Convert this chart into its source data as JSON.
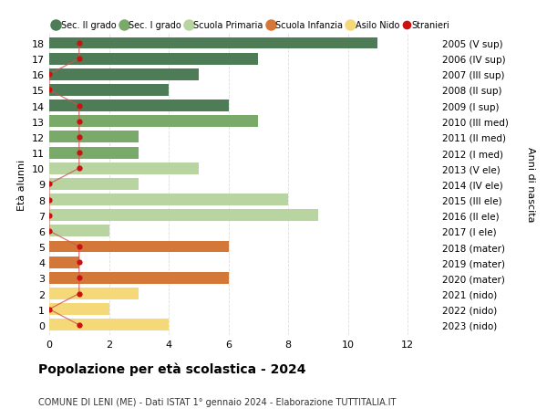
{
  "ages": [
    18,
    17,
    16,
    15,
    14,
    13,
    12,
    11,
    10,
    9,
    8,
    7,
    6,
    5,
    4,
    3,
    2,
    1,
    0
  ],
  "right_labels": [
    "2005 (V sup)",
    "2006 (IV sup)",
    "2007 (III sup)",
    "2008 (II sup)",
    "2009 (I sup)",
    "2010 (III med)",
    "2011 (II med)",
    "2012 (I med)",
    "2013 (V ele)",
    "2014 (IV ele)",
    "2015 (III ele)",
    "2016 (II ele)",
    "2017 (I ele)",
    "2018 (mater)",
    "2019 (mater)",
    "2020 (mater)",
    "2021 (nido)",
    "2022 (nido)",
    "2023 (nido)"
  ],
  "bar_values": [
    11,
    7,
    5,
    4,
    6,
    7,
    3,
    3,
    5,
    3,
    8,
    9,
    2,
    6,
    1,
    6,
    3,
    2,
    4
  ],
  "bar_colors": [
    "#4d7c56",
    "#4d7c56",
    "#4d7c56",
    "#4d7c56",
    "#4d7c56",
    "#7aaa6a",
    "#7aaa6a",
    "#7aaa6a",
    "#b8d4a0",
    "#b8d4a0",
    "#b8d4a0",
    "#b8d4a0",
    "#b8d4a0",
    "#d4783a",
    "#d4783a",
    "#d4783a",
    "#f5d878",
    "#f5d878",
    "#f5d878"
  ],
  "stranieri_x": [
    1,
    1,
    0,
    0,
    1,
    1,
    1,
    1,
    1,
    0,
    0,
    0,
    0,
    1,
    1,
    1,
    1,
    0,
    1
  ],
  "legend_labels": [
    "Sec. II grado",
    "Sec. I grado",
    "Scuola Primaria",
    "Scuola Infanzia",
    "Asilo Nido",
    "Stranieri"
  ],
  "legend_colors": [
    "#4d7c56",
    "#7aaa6a",
    "#b8d4a0",
    "#d4783a",
    "#f5d878",
    "#cc1111"
  ],
  "title": "Popolazione per età scolastica - 2024",
  "subtitle": "COMUNE DI LENI (ME) - Dati ISTAT 1° gennaio 2024 - Elaborazione TUTTITALIA.IT",
  "ylabel_left": "Età alunni",
  "ylabel_right": "Anni di nascita",
  "xlim_max": 13,
  "xticks": [
    0,
    2,
    4,
    6,
    8,
    10,
    12
  ],
  "bg_color": "#ffffff",
  "grid_color": "#dddddd",
  "bar_height": 0.75,
  "stranieri_color": "#cc1111",
  "stranieri_line_color": "#cc5555"
}
